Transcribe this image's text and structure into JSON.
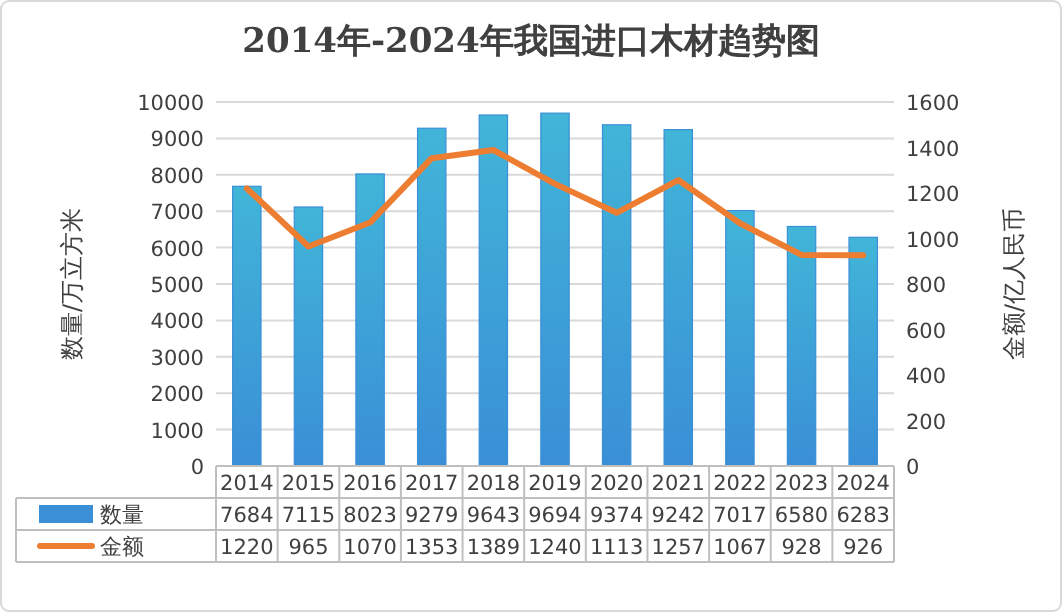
{
  "chart_data": {
    "type": "bar",
    "title": "2014年-2024年我国进口木材趋势图",
    "ylabel": "数量/万立方米",
    "y2label": "金额/亿人民币",
    "categories": [
      "2014",
      "2015",
      "2016",
      "2017",
      "2018",
      "2019",
      "2020",
      "2021",
      "2022",
      "2023",
      "2024"
    ],
    "series": [
      {
        "name": "数量",
        "color": "#3a8fd6",
        "values": [
          7684,
          7115,
          8023,
          9279,
          9643,
          9694,
          9374,
          9242,
          7017,
          6580,
          6283
        ]
      },
      {
        "name": "金额",
        "type": "line",
        "axis": "y2",
        "color": "#ed7d31",
        "values": [
          1220,
          965,
          1070,
          1353,
          1389,
          1240,
          1113,
          1257,
          1067,
          928,
          926
        ]
      }
    ],
    "ylim": [
      0,
      10000
    ],
    "yticks": [
      0,
      1000,
      2000,
      3000,
      4000,
      5000,
      6000,
      7000,
      8000,
      9000,
      10000
    ],
    "y2lim": [
      0,
      1600
    ],
    "y2ticks": [
      0,
      200,
      400,
      600,
      800,
      1000,
      1200,
      1400,
      1600
    ],
    "grid": "y",
    "legend": "bottom",
    "data_labels": true
  }
}
